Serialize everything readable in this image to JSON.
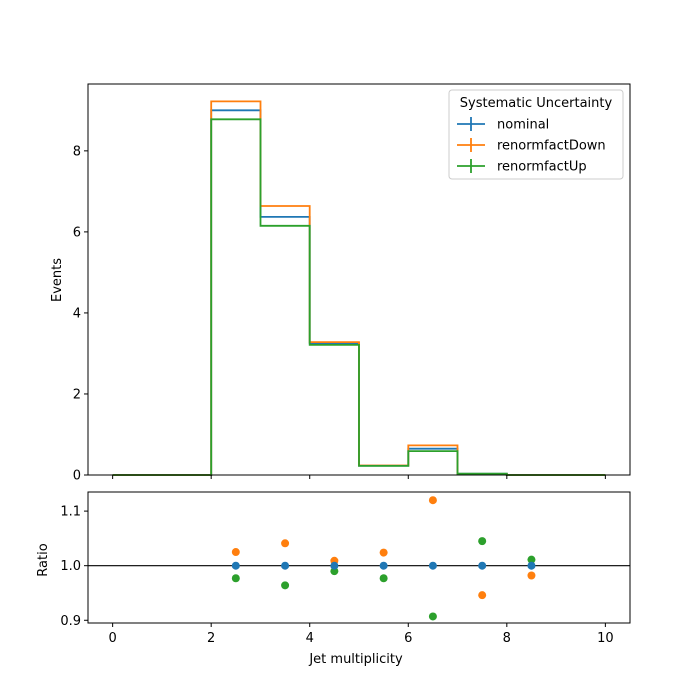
{
  "chart_data": [
    {
      "type": "line",
      "style": "step-histogram",
      "xlabel": "",
      "ylabel": "Events",
      "xlim": [
        -0.5,
        10.5
      ],
      "ylim": [
        0,
        9.65
      ],
      "xticks": [
        0,
        2,
        4,
        6,
        8,
        10
      ],
      "yticks": [
        0,
        2,
        4,
        6,
        8
      ],
      "x_tick_labels_shown": false,
      "bin_edges": [
        0,
        1,
        2,
        3,
        4,
        5,
        6,
        7,
        8,
        9,
        10
      ],
      "legend": {
        "title": "Systematic Uncertainty",
        "placement": "top-right"
      },
      "series": [
        {
          "name": "nominal",
          "color": "#1f77b4",
          "values": [
            0,
            0,
            9.0,
            6.37,
            3.25,
            0.23,
            0.65,
            0.03,
            0,
            0
          ]
        },
        {
          "name": "renormfactDown",
          "color": "#ff7f0e",
          "values": [
            0,
            0,
            9.22,
            6.64,
            3.28,
            0.235,
            0.73,
            0.028,
            0,
            0
          ]
        },
        {
          "name": "renormfactUp",
          "color": "#2ca02c",
          "values": [
            0,
            0,
            8.78,
            6.15,
            3.21,
            0.225,
            0.59,
            0.031,
            0,
            0
          ]
        }
      ]
    },
    {
      "type": "scatter",
      "xlabel": "Jet multiplicity",
      "ylabel": "Ratio",
      "xlim": [
        -0.5,
        10.5
      ],
      "ylim": [
        0.895,
        1.135
      ],
      "xticks": [
        0,
        2,
        4,
        6,
        8,
        10
      ],
      "x_tick_labels": [
        "0",
        "2",
        "4",
        "6",
        "8",
        "10"
      ],
      "yticks": [
        0.9,
        1.0,
        1.1
      ],
      "y_tick_labels": [
        "0.9",
        "1.0",
        "1.1"
      ],
      "reference_line": 1.0,
      "series": [
        {
          "name": "nominal",
          "color": "#1f77b4",
          "x": [
            2.5,
            3.5,
            4.5,
            5.5,
            6.5,
            7.5,
            8.5
          ],
          "y": [
            1.0,
            1.0,
            1.0,
            1.0,
            1.0,
            1.0,
            1.0
          ]
        },
        {
          "name": "renormfactDown",
          "color": "#ff7f0e",
          "x": [
            2.5,
            3.5,
            4.5,
            5.5,
            6.5,
            7.5,
            8.5
          ],
          "y": [
            1.025,
            1.041,
            1.009,
            1.024,
            1.12,
            0.946,
            0.982
          ]
        },
        {
          "name": "renormfactUp",
          "color": "#2ca02c",
          "x": [
            2.5,
            3.5,
            4.5,
            5.5,
            6.5,
            7.5,
            8.5
          ],
          "y": [
            0.977,
            0.964,
            0.99,
            0.977,
            0.907,
            1.045,
            1.011
          ]
        }
      ]
    }
  ]
}
